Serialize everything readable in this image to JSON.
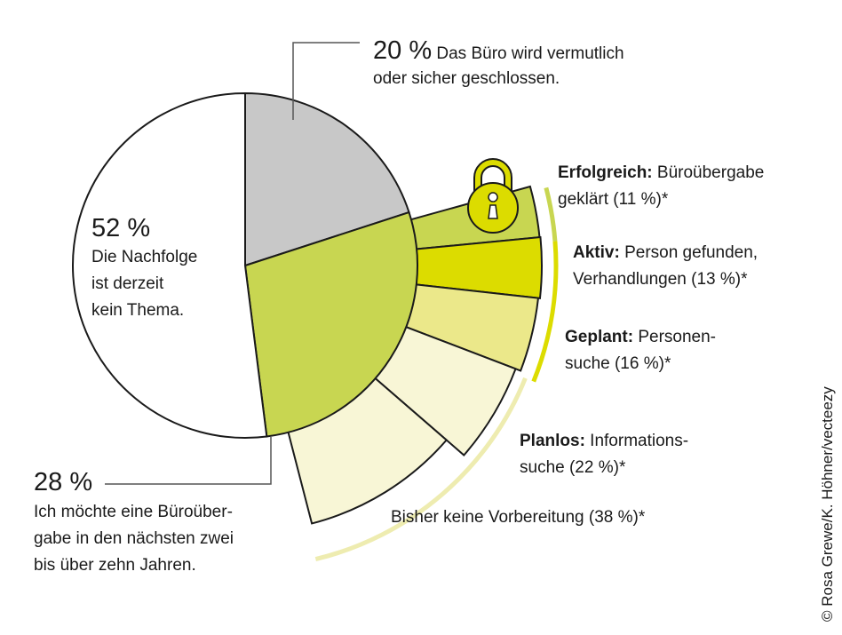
{
  "chart_data": {
    "type": "pie",
    "main": {
      "slices": [
        {
          "value": 20,
          "pct_label": "20 %",
          "text": "Das Büro wird vermutlich oder sicher geschlossen.",
          "line1": "Das Büro wird vermutlich",
          "line2": "oder sicher geschlossen.",
          "color": "#c8c8c8"
        },
        {
          "value": 28,
          "pct_label": "28 %",
          "text": "Ich möchte eine Büroübergabe in den nächsten zwei bis über zehn Jahren.",
          "line1": "Ich möchte eine Büroüber-",
          "line2": "gabe in den nächsten zwei",
          "line3": "bis über zehn Jahren.",
          "color": "#c8d651"
        },
        {
          "value": 52,
          "pct_label": "52 %",
          "line1": "Die Nachfolge",
          "line2": "ist derzeit",
          "line3": "kein Thema.",
          "color": "#ffffff"
        }
      ]
    },
    "breakdown_of": "28 %",
    "breakdown": [
      {
        "value": 11,
        "bold": "Erfolgreich:",
        "line1": " Büroübergabe",
        "line2": "geklärt (11 %)*",
        "color": "#c8d651"
      },
      {
        "value": 13,
        "bold": "Aktiv:",
        "line1": " Person gefunden,",
        "line2": "Verhandlungen (13 %)*",
        "color": "#dcdc00"
      },
      {
        "value": 16,
        "bold": "Geplant:",
        "line1": " Personen-",
        "line2": "suche (16 %)*",
        "color": "#ebe88a"
      },
      {
        "value": 22,
        "bold": "Planlos:",
        "line1": " Informations-",
        "line2": "suche (22 %)*",
        "color": "#f8f6d6"
      },
      {
        "value": 38,
        "bold": "",
        "line1": "Bisher keine Vorbereitung (38 %)*",
        "line2": "",
        "color": "#f8f6d6"
      }
    ],
    "icon": "padlock-icon"
  },
  "credit": "© Rosa Grewe/K. Höhner/vecteezy"
}
